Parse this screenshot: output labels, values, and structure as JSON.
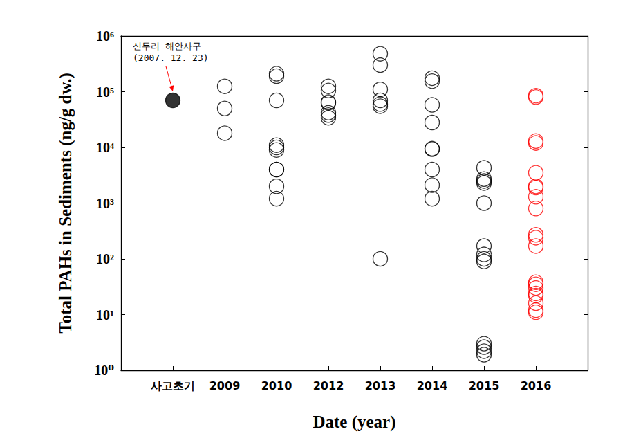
{
  "chart_data": {
    "type": "scatter",
    "x_label": "Date (year)",
    "y_label": "Total PAHs in Sediments (ng/g dw.)",
    "categories": [
      null,
      "사고초기",
      "2009",
      "2010",
      "2012",
      "2013",
      "2014",
      "2015",
      "2016",
      null
    ],
    "log": "y",
    "grid": false,
    "ylim": [
      1,
      1000000
    ],
    "yticks": [
      {
        "value": 1,
        "label": "10⁰"
      },
      {
        "value": 10,
        "label": "10¹"
      },
      {
        "value": 100,
        "label": "10²"
      },
      {
        "value": 1000,
        "label": "10³"
      },
      {
        "value": 10000,
        "label": "10⁴"
      },
      {
        "value": 100000,
        "label": "10⁵"
      },
      {
        "value": 1000000,
        "label": "10⁶"
      }
    ],
    "annotation": {
      "text": "신두리 해안사구\n(2007. 12. 23)",
      "x": "사고초기",
      "y": 70000,
      "color": "#ff0000"
    },
    "series": [
      {
        "color": "#000000",
        "marker": "filled",
        "x": [
          "사고초기"
        ],
        "values": [
          70000
        ]
      },
      {
        "color": "#000000",
        "marker": "open",
        "x": [
          "2009",
          "2009",
          "2009",
          "2010",
          "2010",
          "2010",
          "2010",
          "2010",
          "2010",
          "2010",
          "2010",
          "2010",
          "2010",
          "2012",
          "2012",
          "2012",
          "2012",
          "2012",
          "2012",
          "2012",
          "2013",
          "2013",
          "2013",
          "2013",
          "2013",
          "2013",
          "2013",
          "2014",
          "2014",
          "2014",
          "2014",
          "2014",
          "2014",
          "2014",
          "2014",
          "2014",
          "2015",
          "2015",
          "2015",
          "2015",
          "2015",
          "2015",
          "2015",
          "2015",
          "2015",
          "2015",
          "2015",
          "2015",
          "2015"
        ],
        "values": [
          125000,
          50000,
          18000,
          210000,
          190000,
          70000,
          11000,
          10000,
          9000,
          4000,
          4000,
          2000,
          1200,
          125000,
          105000,
          65000,
          63000,
          42000,
          38000,
          34000,
          480000,
          300000,
          110000,
          70000,
          60000,
          55000,
          100,
          175000,
          155000,
          58000,
          28000,
          9500,
          9300,
          4000,
          2100,
          1200,
          4300,
          2700,
          2500,
          2300,
          1000,
          170,
          120,
          100,
          90,
          3,
          2.6,
          2.2,
          1.9
        ]
      },
      {
        "color": "#ff0000",
        "marker": "open",
        "x": [
          "2016",
          "2016",
          "2016",
          "2016",
          "2016",
          "2016",
          "2016",
          "2016",
          "2016",
          "2016",
          "2016",
          "2016",
          "2016",
          "2016",
          "2016",
          "2016",
          "2016",
          "2016",
          "2016",
          "2016"
        ],
        "values": [
          85000,
          80000,
          13000,
          12000,
          3500,
          2000,
          1900,
          1300,
          800,
          270,
          240,
          170,
          38,
          35,
          30,
          24,
          22,
          16,
          12,
          11
        ]
      }
    ]
  }
}
